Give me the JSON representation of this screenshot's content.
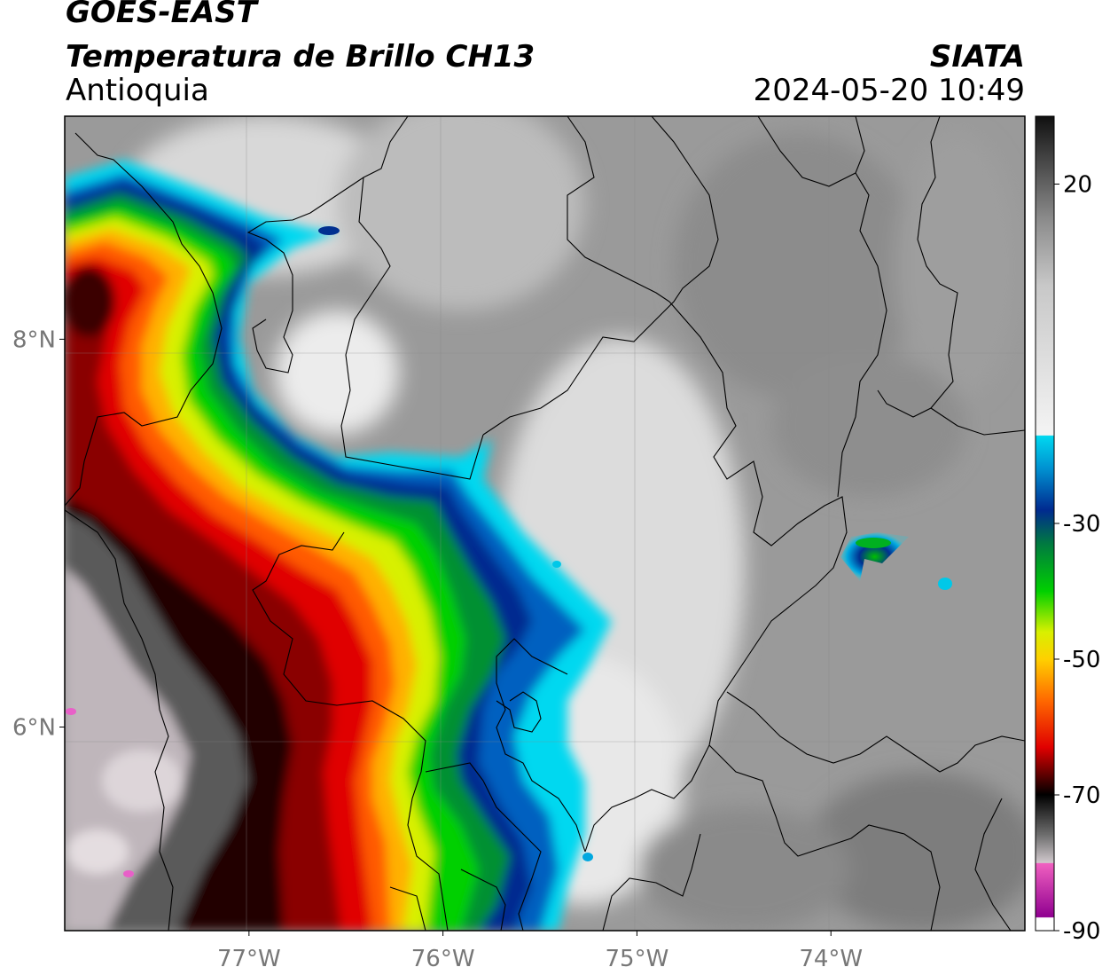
{
  "header": {
    "satellite": "GOES-EAST",
    "product": "Temperatura de Brillo CH13",
    "region": "Antioquia",
    "brand": "SIATA",
    "timestamp": "2024-05-20 10:49"
  },
  "map": {
    "lon_range": [
      -77.95,
      -73.0
    ],
    "lat_range": [
      4.95,
      9.15
    ],
    "lon_ticks": [
      {
        "value": -77,
        "label": "77°W"
      },
      {
        "value": -76,
        "label": "76°W"
      },
      {
        "value": -75,
        "label": "75°W"
      },
      {
        "value": -74,
        "label": "74°W"
      }
    ],
    "lat_ticks": [
      {
        "value": 8,
        "label": "8°N"
      },
      {
        "value": 6,
        "label": "6°N"
      }
    ],
    "gridlines": true,
    "field": "brightness temperature (°C)",
    "features": [
      "cold cloud tops over western Antioquia and Chocó",
      "isolated convective cell near 73.8°W 7.1°N",
      "administrative borders",
      "coastline"
    ]
  },
  "colorbar": {
    "range": [
      -90,
      30
    ],
    "ticks": [
      {
        "value": 20,
        "label": "20"
      },
      {
        "value": -30,
        "label": "-30"
      },
      {
        "value": -50,
        "label": "-50"
      },
      {
        "value": -70,
        "label": "-70"
      },
      {
        "value": -90,
        "label": "-90"
      }
    ],
    "stops": [
      {
        "value": 30,
        "color": "#101010"
      },
      {
        "value": 25,
        "color": "#3a3a3a"
      },
      {
        "value": 15,
        "color": "#8a8a8a"
      },
      {
        "value": 5,
        "color": "#c8c8c8"
      },
      {
        "value": -17,
        "color": "#f4f4f4"
      },
      {
        "value": -17.1,
        "color": "#00d8f0"
      },
      {
        "value": -22,
        "color": "#0090d0"
      },
      {
        "value": -28,
        "color": "#002a90"
      },
      {
        "value": -33,
        "color": "#007a40"
      },
      {
        "value": -40,
        "color": "#00d000"
      },
      {
        "value": -46,
        "color": "#d8f000"
      },
      {
        "value": -50,
        "color": "#ffd000"
      },
      {
        "value": -56,
        "color": "#ff6a00"
      },
      {
        "value": -63,
        "color": "#e00000"
      },
      {
        "value": -67,
        "color": "#600000"
      },
      {
        "value": -70,
        "color": "#000000"
      },
      {
        "value": -76,
        "color": "#707070"
      },
      {
        "value": -80,
        "color": "#d0c8cc"
      },
      {
        "value": -80.1,
        "color": "#f060c0"
      },
      {
        "value": -88,
        "color": "#900090"
      },
      {
        "value": -88.1,
        "color": "#ffffff"
      },
      {
        "value": -90,
        "color": "#ffffff"
      }
    ]
  }
}
